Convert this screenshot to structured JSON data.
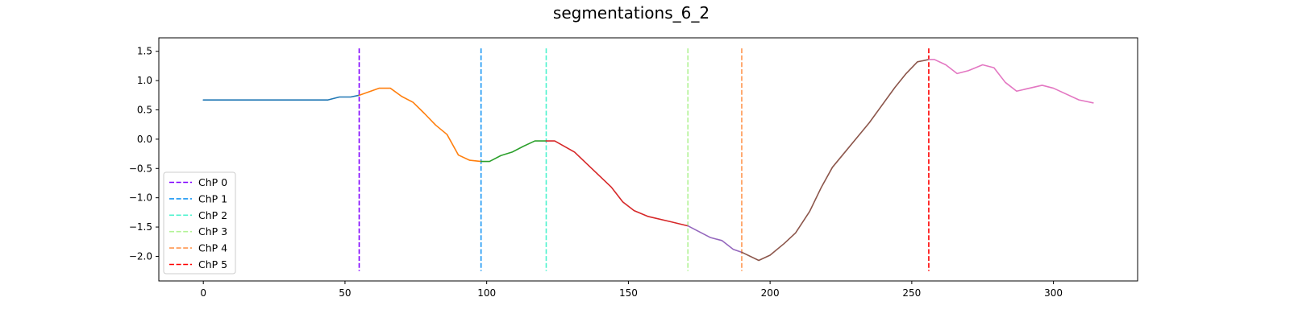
{
  "chart_data": {
    "type": "line",
    "title": "segmentations_6_2",
    "xlabel": "",
    "ylabel": "",
    "xlim": [
      -15.7,
      329.7
    ],
    "ylim": [
      -2.42,
      1.73
    ],
    "xticks": [
      0,
      50,
      100,
      150,
      200,
      250,
      300
    ],
    "yticks": [
      1.5,
      1.0,
      0.5,
      0.0,
      -0.5,
      -1.0,
      -1.5,
      -2.0
    ],
    "ytick_labels": [
      "1.5",
      "1.0",
      "0.5",
      "0.0",
      "−0.5",
      "−1.0",
      "−1.5",
      "−2.0"
    ],
    "grid": false,
    "legend_position": "lower-left",
    "series": [
      {
        "color": "#1f77b4",
        "points": [
          [
            0,
            0.67
          ],
          [
            44,
            0.67
          ],
          [
            48,
            0.72
          ],
          [
            52,
            0.72
          ],
          [
            55,
            0.75
          ]
        ]
      },
      {
        "color": "#ff7f0e",
        "points": [
          [
            55,
            0.75
          ],
          [
            58,
            0.8
          ],
          [
            62,
            0.87
          ],
          [
            66,
            0.87
          ],
          [
            70,
            0.73
          ],
          [
            74,
            0.63
          ],
          [
            78,
            0.44
          ],
          [
            82,
            0.24
          ],
          [
            86,
            0.08
          ],
          [
            90,
            -0.27
          ],
          [
            94,
            -0.36
          ],
          [
            98,
            -0.38
          ]
        ]
      },
      {
        "color": "#2ca02c",
        "points": [
          [
            98,
            -0.38
          ],
          [
            101,
            -0.38
          ],
          [
            105,
            -0.28
          ],
          [
            109,
            -0.22
          ],
          [
            113,
            -0.12
          ],
          [
            117,
            -0.03
          ],
          [
            121,
            -0.03
          ]
        ]
      },
      {
        "color": "#d62728",
        "points": [
          [
            121,
            -0.03
          ],
          [
            124,
            -0.03
          ],
          [
            131,
            -0.22
          ],
          [
            144,
            -0.82
          ],
          [
            148,
            -1.07
          ],
          [
            152,
            -1.22
          ],
          [
            157,
            -1.32
          ],
          [
            165,
            -1.41
          ],
          [
            171,
            -1.48
          ]
        ]
      },
      {
        "color": "#9467bd",
        "points": [
          [
            171,
            -1.48
          ],
          [
            179,
            -1.68
          ],
          [
            183,
            -1.73
          ],
          [
            187,
            -1.88
          ],
          [
            190,
            -1.93
          ]
        ]
      },
      {
        "color": "#8c564b",
        "points": [
          [
            190,
            -1.93
          ],
          [
            196,
            -2.07
          ],
          [
            200,
            -1.98
          ],
          [
            205,
            -1.78
          ],
          [
            209,
            -1.6
          ],
          [
            214,
            -1.23
          ],
          [
            218,
            -0.83
          ],
          [
            222,
            -0.48
          ],
          [
            235,
            0.28
          ],
          [
            244,
            0.88
          ],
          [
            248,
            1.12
          ],
          [
            252,
            1.32
          ],
          [
            256,
            1.36
          ]
        ]
      },
      {
        "color": "#e377c2",
        "points": [
          [
            256,
            1.36
          ],
          [
            258,
            1.36
          ],
          [
            262,
            1.27
          ],
          [
            266,
            1.12
          ],
          [
            270,
            1.17
          ],
          [
            275,
            1.27
          ],
          [
            279,
            1.22
          ],
          [
            283,
            0.97
          ],
          [
            287,
            0.82
          ],
          [
            296,
            0.92
          ],
          [
            300,
            0.87
          ],
          [
            309,
            0.67
          ],
          [
            314,
            0.62
          ]
        ]
      }
    ],
    "changepoints": [
      {
        "name": "ChP 0",
        "x": 55,
        "color": "#8000ff"
      },
      {
        "name": "ChP 1",
        "x": 98,
        "color": "#1996f3"
      },
      {
        "name": "ChP 2",
        "x": 121,
        "color": "#4df3ce"
      },
      {
        "name": "ChP 3",
        "x": 171,
        "color": "#b2f396"
      },
      {
        "name": "ChP 4",
        "x": 190,
        "color": "#ff964f"
      },
      {
        "name": "ChP 5",
        "x": 256,
        "color": "#ff0000"
      }
    ],
    "changepoint_ylim": [
      -2.25,
      1.55
    ]
  }
}
